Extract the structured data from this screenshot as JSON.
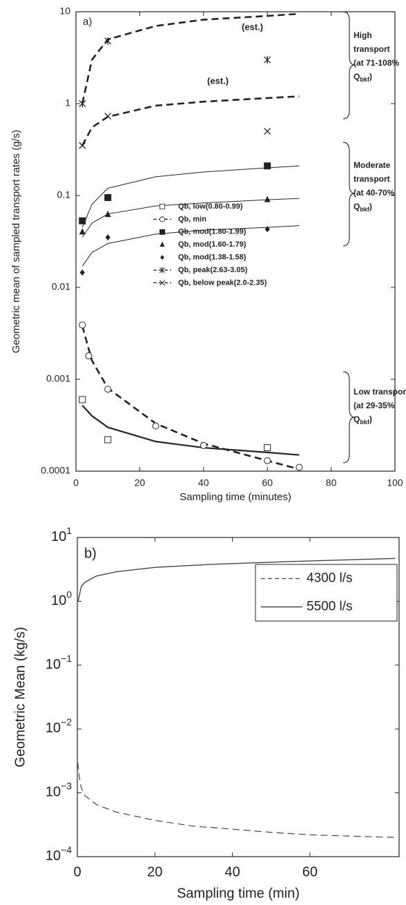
{
  "chart_data": [
    {
      "type": "scatter-fit",
      "panel_label": "a)",
      "x_label": "Sampling time (minutes)",
      "y_label": "Geometric mean of sampled transport rates (g/s)",
      "xlim": [
        0,
        100
      ],
      "xticks": [
        0,
        20,
        40,
        60,
        80,
        100
      ],
      "ylim": [
        0.0001,
        10
      ],
      "yticks": [
        0.0001,
        0.001,
        0.01,
        0.1,
        1,
        10
      ],
      "log_y": true,
      "grid": false,
      "legend": "center",
      "series": [
        {
          "name": "Qb, low(0.80-0.99)",
          "marker": "square-open",
          "legend_line": false,
          "color": "#222",
          "line_style": "solid",
          "line_width": 2.2,
          "x": [
            2,
            10,
            60
          ],
          "values": [
            0.0006,
            0.00022,
            0.00018
          ],
          "fit_x": [
            2,
            5,
            10,
            25,
            40,
            60,
            70
          ],
          "fit_values": [
            0.00052,
            0.0004,
            0.0003,
            0.00021,
            0.00018,
            0.00016,
            0.00015
          ]
        },
        {
          "name": "Qb, min",
          "marker": "circle-open",
          "legend_line": true,
          "color": "#222",
          "line_style": "dashed",
          "line_width": 2.6,
          "x": [
            2,
            4,
            10,
            25,
            40,
            60,
            70
          ],
          "values": [
            0.0039,
            0.0018,
            0.00078,
            0.00031,
            0.00019,
            0.00013,
            0.00011
          ],
          "fit_x": [
            2,
            5,
            10,
            25,
            40,
            60,
            70
          ],
          "fit_values": [
            0.0038,
            0.0016,
            0.0008,
            0.00033,
            0.0002,
            0.00013,
            0.000105
          ]
        },
        {
          "name": "Qb, mod(1.80-1.99)",
          "marker": "square",
          "legend_line": false,
          "color": "#222",
          "line_style": "solid",
          "line_width": 1,
          "x": [
            2,
            10,
            60
          ],
          "values": [
            0.053,
            0.095,
            0.21
          ],
          "fit_x": [
            2,
            5,
            10,
            25,
            40,
            60,
            70
          ],
          "fit_values": [
            0.045,
            0.08,
            0.12,
            0.16,
            0.18,
            0.2,
            0.21
          ]
        },
        {
          "name": "Qb, mod(1.60-1.79)",
          "marker": "triangle",
          "legend_line": false,
          "color": "#222",
          "line_style": "solid",
          "line_width": 1,
          "x": [
            2,
            10,
            60
          ],
          "values": [
            0.04,
            0.062,
            0.09
          ],
          "fit_x": [
            2,
            5,
            10,
            25,
            40,
            60,
            70
          ],
          "fit_values": [
            0.035,
            0.05,
            0.063,
            0.077,
            0.083,
            0.09,
            0.093
          ]
        },
        {
          "name": "Qb, mod(1.38-1.58)",
          "marker": "diamond",
          "legend_line": false,
          "color": "#222",
          "line_style": "solid",
          "line_width": 1,
          "x": [
            2,
            10,
            60
          ],
          "values": [
            0.0145,
            0.035,
            0.043
          ],
          "fit_x": [
            2,
            5,
            10,
            25,
            40,
            60,
            70
          ],
          "fit_values": [
            0.017,
            0.024,
            0.03,
            0.038,
            0.042,
            0.045,
            0.047
          ]
        },
        {
          "name": "Qb, peak(2.63-3.05)",
          "marker": "asterisk",
          "legend_line": true,
          "color": "#222",
          "line_style": "dashed",
          "line_width": 2.6,
          "x": [
            2,
            10,
            60
          ],
          "values": [
            1.0,
            4.8,
            3.0
          ],
          "fit_x": [
            2,
            5,
            10,
            25,
            40,
            60,
            70
          ],
          "fit_values": [
            1.0,
            3,
            5,
            7,
            8.2,
            9,
            9.5
          ]
        },
        {
          "name": "Qb, below peak(2.0-2.35)",
          "marker": "x",
          "legend_line": true,
          "color": "#222",
          "line_style": "dashed",
          "line_width": 2.6,
          "x": [
            2,
            10,
            60
          ],
          "values": [
            0.35,
            0.73,
            0.5
          ],
          "fit_x": [
            2,
            5,
            10,
            25,
            40,
            60,
            70
          ],
          "fit_values": [
            0.35,
            0.55,
            0.72,
            0.95,
            1.05,
            1.15,
            1.2
          ]
        }
      ],
      "annotations": [
        "(est.)",
        "(est.)"
      ],
      "brackets": [
        {
          "lines": [
            "High",
            "transport",
            "(at 71-108%"
          ],
          "q": "Q",
          "sub": "bkf",
          "end": ")"
        },
        {
          "lines": [
            "Moderate",
            "transport",
            "(at 40-70%"
          ],
          "q": "Q",
          "sub": "bkf",
          "end": ")"
        },
        {
          "lines": [
            "Low transport",
            "(at 29-35%"
          ],
          "q": "Q",
          "sub": "bkf",
          "end": ")"
        }
      ]
    },
    {
      "type": "line",
      "panel_label": "b)",
      "x_label": "Sampling time (min)",
      "y_label": "Geometric Mean (kg/s)",
      "xlim": [
        0,
        83
      ],
      "xticks": [
        0,
        20,
        40,
        60
      ],
      "ylim": [
        0.0001,
        10
      ],
      "log_y": true,
      "grid": false,
      "legend": "upper right",
      "yticks": [
        {
          "value": 0.0001,
          "label": "10",
          "exponent": "−4"
        },
        {
          "value": 0.001,
          "label": "10",
          "exponent": "−3"
        },
        {
          "value": 0.01,
          "label": "10",
          "exponent": "−2"
        },
        {
          "value": 0.1,
          "label": "10",
          "exponent": "−1"
        },
        {
          "value": 1,
          "label": "10",
          "exponent": "0"
        },
        {
          "value": 10,
          "label": "10",
          "exponent": "1"
        }
      ],
      "series": [
        {
          "name": "4300 l/s",
          "color": "#444",
          "line_style": "dashed",
          "line_width": 1.2,
          "x": [
            0.1,
            0.5,
            1,
            2,
            5,
            10,
            20,
            30,
            40,
            50,
            60,
            70,
            82
          ],
          "values": [
            0.003,
            0.0018,
            0.0012,
            0.0009,
            0.00065,
            0.0005,
            0.00037,
            0.0003,
            0.00027,
            0.00024,
            0.00022,
            0.00021,
            0.0002
          ]
        },
        {
          "name": "5500 l/s",
          "color": "#444",
          "line_style": "solid",
          "line_width": 1.4,
          "x": [
            0.2,
            1,
            2,
            5,
            10,
            20,
            35,
            55,
            82
          ],
          "values": [
            1.0,
            1.7,
            2.0,
            2.5,
            2.9,
            3.4,
            3.8,
            4.2,
            4.7
          ]
        }
      ]
    }
  ]
}
